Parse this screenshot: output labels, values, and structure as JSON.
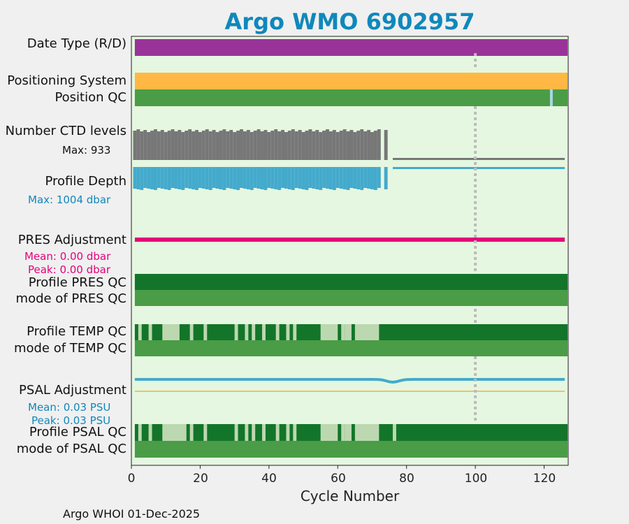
{
  "title": "Argo WMO 6902957",
  "footer": "Argo WHOI 01-Dec-2025",
  "colors": {
    "background": "#e5f7e0",
    "title": "#1088bb",
    "data_type": "#993399",
    "positioning": "#ffb844",
    "qc_good": "#4a9c46",
    "qc_dark": "#137529",
    "qc_light": "#bcd8b0",
    "ctd": "#777777",
    "depth": "#44aacc",
    "pres_adj": "#e6007a",
    "psal_adj": "#44aacc",
    "psal_zero": "#e8b04a",
    "pos_qc_flag": "#aad8e8",
    "marker": "#bbbbbb"
  },
  "rows": {
    "date_type": "Date Type (R/D)",
    "positioning": "Positioning System",
    "position_qc": "Position QC",
    "ctd_levels": "Number CTD levels",
    "ctd_max": "Max: 933",
    "profile_depth": "Profile Depth",
    "depth_max": "Max: 1004 dbar",
    "pres_adj": "PRES Adjustment",
    "pres_mean": "Mean: 0.00 dbar",
    "pres_peak": "Peak: 0.00 dbar",
    "profile_pres_qc": "Profile PRES QC",
    "mode_pres_qc": "mode of PRES QC",
    "profile_temp_qc": "Profile TEMP QC",
    "mode_temp_qc": "mode of TEMP QC",
    "psal_adj": "PSAL Adjustment",
    "psal_mean": "Mean: 0.03 PSU",
    "psal_peak": "Peak: 0.03 PSU",
    "profile_psal_qc": "Profile PSAL QC",
    "mode_psal_qc": "mode of PSAL QC"
  },
  "chart_data": {
    "type": "bar",
    "title": "Argo WMO 6902957",
    "xlabel": "Cycle Number",
    "xlim": [
      0,
      127
    ],
    "xticks": [
      0,
      20,
      40,
      60,
      80,
      100,
      120
    ],
    "vertical_marker_x": 100,
    "cycles_full_range": [
      1,
      126
    ],
    "ctd_levels": {
      "max": 933,
      "deep_cycles": [
        1,
        74
      ],
      "shallow_cycles": [
        76,
        126
      ],
      "gaps": [
        73,
        75
      ]
    },
    "profile_depth": {
      "max_dbar": 1004,
      "deep_cycles": [
        1,
        74
      ],
      "shallow_cycles": [
        76,
        126
      ],
      "gaps": [
        73,
        75
      ]
    },
    "position_qc_flagged_cycles": [
      122
    ],
    "pres_adjustment": {
      "mean": 0.0,
      "peak": 0.0,
      "unit": "dbar"
    },
    "psal_adjustment": {
      "mean": 0.03,
      "peak": 0.03,
      "unit": "PSU"
    },
    "profile_temp_qc_light_segments": [
      [
        2,
        3
      ],
      [
        5,
        6
      ],
      [
        9,
        14
      ],
      [
        17,
        18
      ],
      [
        21,
        22
      ],
      [
        30,
        31
      ],
      [
        33,
        34
      ],
      [
        35,
        36
      ],
      [
        38,
        39
      ],
      [
        42,
        43
      ],
      [
        45,
        46
      ],
      [
        47,
        48
      ],
      [
        55,
        60
      ],
      [
        61,
        62
      ],
      [
        62,
        64
      ],
      [
        65,
        72
      ]
    ],
    "profile_psal_qc_light_segments": [
      [
        2,
        3
      ],
      [
        5,
        6
      ],
      [
        9,
        16
      ],
      [
        17,
        18
      ],
      [
        21,
        22
      ],
      [
        30,
        31
      ],
      [
        33,
        34
      ],
      [
        35,
        36
      ],
      [
        38,
        39
      ],
      [
        42,
        43
      ],
      [
        45,
        46
      ],
      [
        47,
        48
      ],
      [
        55,
        60
      ],
      [
        61,
        62
      ],
      [
        62,
        64
      ],
      [
        65,
        72
      ],
      [
        76,
        77
      ]
    ]
  }
}
